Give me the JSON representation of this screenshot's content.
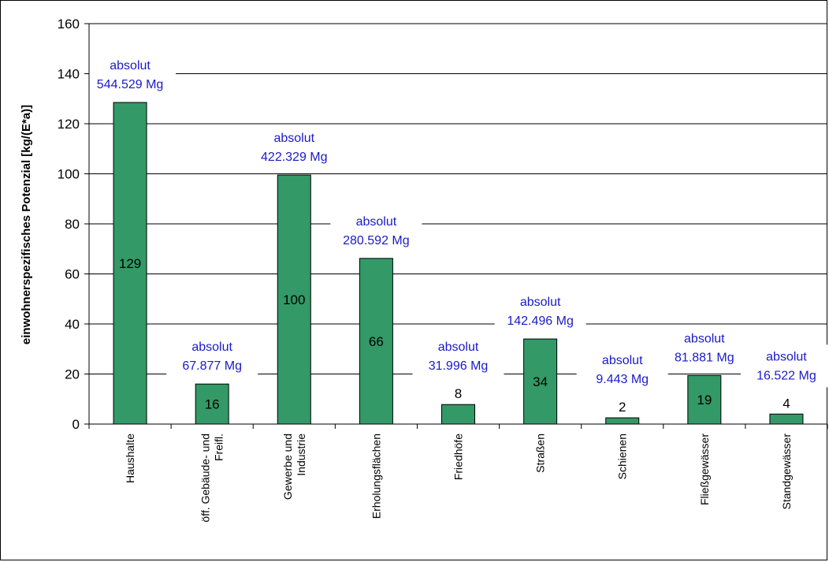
{
  "chart_data": {
    "type": "bar",
    "title": "",
    "xlabel": "",
    "ylabel": "einwohnerspezifisches Potenzial [kg/(E*a)]",
    "ylim": [
      0,
      160
    ],
    "yticks": [
      0,
      20,
      40,
      60,
      80,
      100,
      120,
      140,
      160
    ],
    "grid": true,
    "bar_color": "#339966",
    "annotation_color": "#1a1acc",
    "categories": [
      [
        "Haushalte"
      ],
      [
        "öff. Gebäude- und",
        "Freifl."
      ],
      [
        "Gewerbe und",
        "Industrie"
      ],
      [
        "Erholungsflächen"
      ],
      [
        "Friedhöfe"
      ],
      [
        "Straßen"
      ],
      [
        "Schienen"
      ],
      [
        "Fließgewässer"
      ],
      [
        "Standgewässer"
      ]
    ],
    "values": [
      128.5,
      16,
      99.5,
      66.2,
      7.8,
      34,
      2.5,
      19.4,
      4
    ],
    "value_labels": [
      "129",
      "16",
      "100",
      "66",
      "8",
      "34",
      "2",
      "19",
      "4"
    ],
    "annotations": [
      [
        "absolut",
        "544.529 Mg"
      ],
      [
        "absolut",
        "67.877 Mg"
      ],
      [
        "absolut",
        "422.329 Mg"
      ],
      [
        "absolut",
        "280.592 Mg"
      ],
      [
        "absolut",
        "31.996 Mg"
      ],
      [
        "absolut",
        "142.496 Mg"
      ],
      [
        "absolut",
        "9.443 Mg"
      ],
      [
        "absolut",
        "81.881 Mg"
      ],
      [
        "absolut",
        "16.522 Mg"
      ]
    ]
  }
}
